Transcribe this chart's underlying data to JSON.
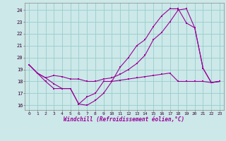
{
  "background_color": "#cce8e8",
  "grid_color": "#99cccc",
  "line_color": "#990099",
  "xlim": [
    -0.5,
    23.5
  ],
  "ylim": [
    15.6,
    24.6
  ],
  "yticks": [
    16,
    17,
    18,
    19,
    20,
    21,
    22,
    23,
    24
  ],
  "xticks": [
    0,
    1,
    2,
    3,
    4,
    5,
    6,
    7,
    8,
    9,
    10,
    11,
    12,
    13,
    14,
    15,
    16,
    17,
    18,
    19,
    20,
    21,
    22,
    23
  ],
  "xlabel": "Windchill (Refroidissement éolien,°C)",
  "series1_x": [
    0,
    1,
    2,
    3,
    4,
    5,
    6,
    7,
    8,
    9,
    10,
    11,
    12,
    13,
    14,
    15,
    16,
    17,
    18,
    19,
    20,
    21,
    22,
    23
  ],
  "series1_y": [
    19.4,
    18.7,
    18.0,
    17.4,
    17.4,
    17.4,
    16.1,
    16.0,
    16.4,
    17.0,
    18.0,
    18.1,
    18.2,
    18.3,
    18.4,
    18.5,
    18.6,
    18.7,
    18.0,
    18.0,
    18.0,
    18.0,
    17.9,
    18.0
  ],
  "series2_x": [
    0,
    1,
    2,
    3,
    4,
    5,
    6,
    7,
    8,
    9,
    10,
    11,
    12,
    13,
    14,
    15,
    16,
    17,
    18,
    19,
    20,
    21,
    22,
    23
  ],
  "series2_y": [
    19.4,
    18.7,
    18.3,
    17.8,
    17.4,
    17.4,
    16.1,
    16.7,
    17.0,
    18.0,
    18.0,
    19.2,
    20.0,
    21.0,
    21.5,
    22.6,
    23.5,
    24.1,
    24.1,
    22.9,
    22.5,
    19.1,
    17.9,
    18.0
  ],
  "series3_x": [
    0,
    1,
    2,
    3,
    4,
    5,
    6,
    7,
    8,
    9,
    10,
    11,
    12,
    13,
    14,
    15,
    16,
    17,
    18,
    19,
    20,
    21,
    22,
    23
  ],
  "series3_y": [
    19.4,
    18.7,
    18.3,
    18.5,
    18.4,
    18.2,
    18.2,
    18.0,
    18.0,
    18.2,
    18.3,
    18.6,
    19.0,
    19.5,
    20.2,
    21.5,
    22.1,
    23.0,
    24.0,
    24.1,
    22.5,
    19.1,
    17.9,
    18.0
  ]
}
